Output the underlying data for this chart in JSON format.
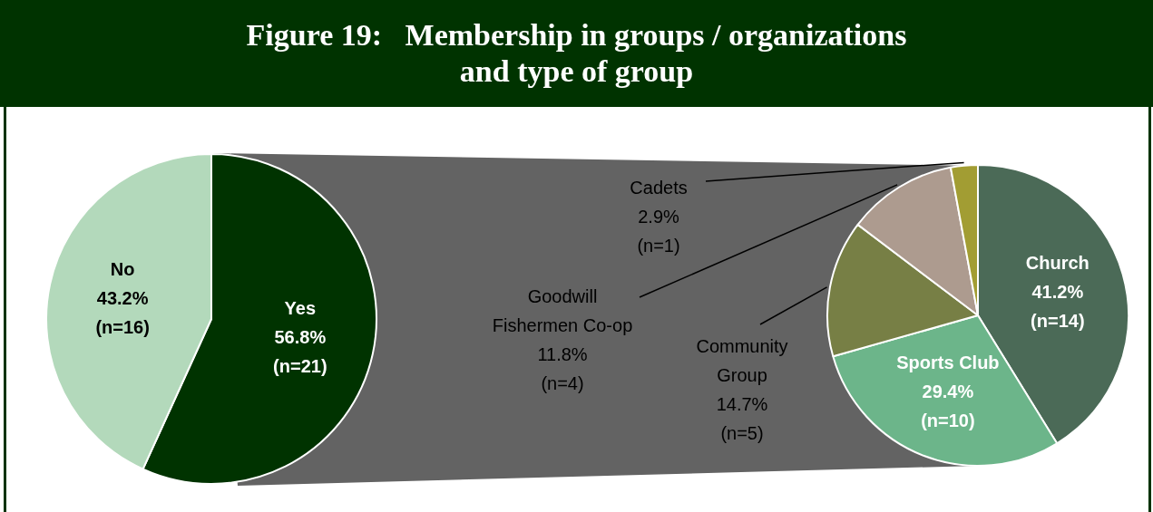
{
  "chart_data": [
    {
      "type": "pie",
      "title": "Figure 19:   Membership in groups / organizations and type of group",
      "categories": [
        "Yes",
        "No"
      ],
      "values": [
        56.8,
        43.2
      ],
      "colors": [
        "#003300",
        "#b3d9bb"
      ],
      "value_labels": [
        "56.8%\n(n=21)",
        "43.2%\n(n=16)"
      ]
    },
    {
      "type": "pie",
      "categories": [
        "Church",
        "Sports Club",
        "Community Group",
        "Goodwill Fishermen Co-op",
        "Cadets"
      ],
      "values": [
        41.2,
        29.4,
        14.7,
        11.8,
        2.9
      ],
      "colors": [
        "#4b6a57",
        "#6cb58a",
        "#777f45",
        "#ad9b8f",
        "#a29d33"
      ],
      "value_labels": [
        "41.2%\n(n=14)",
        "29.4%\n(n=10)",
        "14.7%\n(n=5)",
        "11.8%\n(n=4)",
        "2.9%\n(n=1)"
      ]
    }
  ]
}
